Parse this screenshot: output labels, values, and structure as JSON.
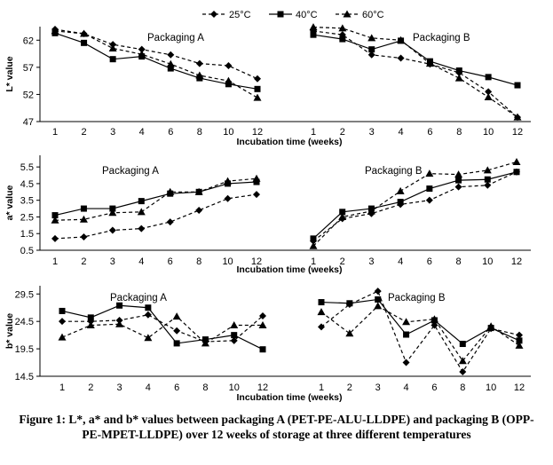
{
  "legend": [
    {
      "name": "25°C",
      "marker": "diamond",
      "dash": true
    },
    {
      "name": "40°C",
      "marker": "square",
      "dash": false
    },
    {
      "name": "60°C",
      "marker": "triangle",
      "dash": true
    }
  ],
  "caption": "Figure 1: L*, a* and b* values between packaging A (PET-PE-ALU-LLDPE) and packaging B (OPP-PE-MPET-LLDPE) over 12 weeks of storage at three different temperatures",
  "chart_data": [
    {
      "type": "line",
      "ylabel": "L* value",
      "xlabel": "Incubation time (weeks)",
      "yticks": [
        47,
        52,
        57,
        62
      ],
      "ylim": [
        47,
        64.5
      ],
      "x": [
        1,
        2,
        3,
        4,
        6,
        8,
        10,
        12
      ],
      "panels": [
        {
          "title": "Packaging A",
          "series": [
            {
              "name": "25°C",
              "values": [
                64.0,
                63.2,
                61.2,
                60.3,
                59.3,
                57.7,
                57.3,
                54.9
              ]
            },
            {
              "name": "40°C",
              "values": [
                63.3,
                61.5,
                58.5,
                59.0,
                56.8,
                55.0,
                53.9,
                53.0
              ]
            },
            {
              "name": "60°C",
              "values": [
                63.7,
                63.2,
                60.5,
                59.4,
                57.6,
                55.5,
                54.5,
                51.4
              ]
            }
          ]
        },
        {
          "title": "Packaging B",
          "series": [
            {
              "name": "25°C",
              "values": [
                63.7,
                63.0,
                59.3,
                58.7,
                57.6,
                56.0,
                52.5,
                47.8
              ]
            },
            {
              "name": "40°C",
              "values": [
                63.0,
                62.2,
                60.3,
                61.9,
                58.1,
                56.4,
                55.2,
                53.7
              ]
            },
            {
              "name": "60°C",
              "values": [
                64.4,
                64.2,
                62.4,
                62.0,
                57.7,
                55.0,
                51.5,
                47.8
              ]
            }
          ]
        }
      ]
    },
    {
      "type": "line",
      "ylabel": "a* value",
      "xlabel": "Incubation time (weeks)",
      "yticks": [
        0.5,
        1.5,
        2.5,
        3.5,
        4.5,
        5.5
      ],
      "ylim": [
        0.5,
        6.2
      ],
      "x": [
        1,
        2,
        3,
        4,
        6,
        8,
        10,
        12
      ],
      "panels": [
        {
          "title": "Packaging A",
          "series": [
            {
              "name": "25°C",
              "values": [
                1.2,
                1.3,
                1.7,
                1.8,
                2.2,
                2.9,
                3.6,
                3.85
              ]
            },
            {
              "name": "40°C",
              "values": [
                2.6,
                3.0,
                3.0,
                3.45,
                3.9,
                4.0,
                4.5,
                4.6
              ]
            },
            {
              "name": "60°C",
              "values": [
                2.3,
                2.35,
                2.75,
                2.8,
                4.0,
                4.0,
                4.65,
                4.8
              ]
            }
          ]
        },
        {
          "title": "Packaging B",
          "series": [
            {
              "name": "25°C",
              "values": [
                1.05,
                2.4,
                2.7,
                3.25,
                3.5,
                4.3,
                4.4,
                5.2
              ]
            },
            {
              "name": "40°C",
              "values": [
                1.2,
                2.8,
                3.0,
                3.4,
                4.2,
                4.7,
                4.75,
                5.2
              ]
            },
            {
              "name": "60°C",
              "values": [
                0.75,
                2.5,
                2.85,
                4.05,
                5.1,
                5.05,
                5.3,
                5.8
              ]
            }
          ]
        }
      ]
    },
    {
      "type": "line",
      "ylabel": "b* value",
      "xlabel": "Incubation time (weeks)",
      "yticks": [
        14.5,
        19.5,
        24.5,
        29.5
      ],
      "ylim": [
        14.5,
        31
      ],
      "x": [
        1,
        2,
        3,
        4,
        6,
        8,
        10,
        12
      ],
      "panels": [
        {
          "title": "Packaging A",
          "series": [
            {
              "name": "25°C",
              "values": [
                24.5,
                24.5,
                24.7,
                25.7,
                22.8,
                20.8,
                21.0,
                25.5
              ]
            },
            {
              "name": "40°C",
              "values": [
                26.4,
                25.2,
                27.4,
                27.0,
                20.5,
                21.2,
                22.0,
                19.4
              ]
            },
            {
              "name": "60°C",
              "values": [
                21.6,
                23.8,
                24.0,
                21.5,
                25.4,
                20.5,
                23.8,
                23.8
              ]
            }
          ]
        },
        {
          "title": "Packaging B",
          "series": [
            {
              "name": "25°C",
              "values": [
                23.5,
                27.6,
                30.0,
                17.0,
                23.8,
                15.3,
                23.2,
                22.0
              ]
            },
            {
              "name": "40°C",
              "values": [
                28.0,
                27.8,
                28.5,
                22.1,
                24.7,
                20.4,
                23.3,
                21.0
              ]
            },
            {
              "name": "60°C",
              "values": [
                26.2,
                22.3,
                27.3,
                24.4,
                24.9,
                17.3,
                23.6,
                20.1
              ]
            }
          ]
        }
      ]
    }
  ]
}
